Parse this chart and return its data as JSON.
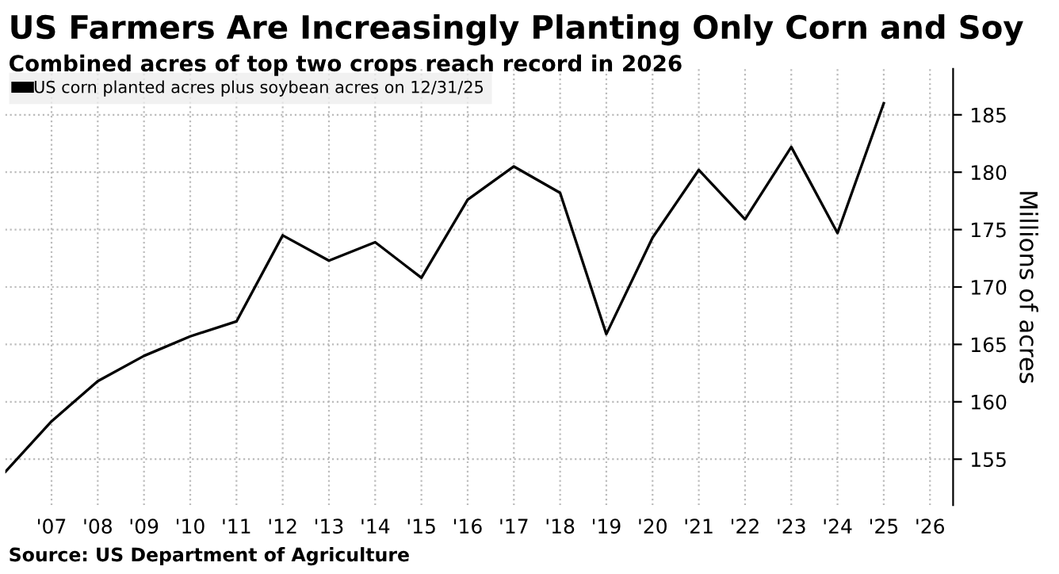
{
  "chart_data": {
    "type": "line",
    "title": "US Farmers Are Increasingly Planting Only Corn and Soy",
    "subtitle": "Combined acres of top two crops reach record in 2026",
    "ylabel": "Millions of acres",
    "annotations": [
      "Source: US Department of Agriculture"
    ],
    "x": [
      2006,
      2007,
      2008,
      2009,
      2010,
      2011,
      2012,
      2013,
      2014,
      2015,
      2016,
      2017,
      2018,
      2019,
      2020,
      2021,
      2022,
      2023,
      2024,
      2025
    ],
    "series": [
      {
        "name": "US corn planted acres plus soybean acres on 12/31/25",
        "color": "#000000",
        "values": [
          153.9,
          158.3,
          161.8,
          164.0,
          165.7,
          167.0,
          174.5,
          172.3,
          173.9,
          170.8,
          177.6,
          180.5,
          178.2,
          165.9,
          174.3,
          180.2,
          175.9,
          182.2,
          174.7,
          186.0
        ]
      }
    ],
    "xlim": [
      2006,
      2026.5
    ],
    "ylim": [
      151,
      189
    ],
    "xticks": [
      {
        "value": 2007,
        "label": "'07"
      },
      {
        "value": 2008,
        "label": "'08"
      },
      {
        "value": 2009,
        "label": "'09"
      },
      {
        "value": 2010,
        "label": "'10"
      },
      {
        "value": 2011,
        "label": "'11"
      },
      {
        "value": 2012,
        "label": "'12"
      },
      {
        "value": 2013,
        "label": "'13"
      },
      {
        "value": 2014,
        "label": "'14"
      },
      {
        "value": 2015,
        "label": "'15"
      },
      {
        "value": 2016,
        "label": "'16"
      },
      {
        "value": 2017,
        "label": "'17"
      },
      {
        "value": 2018,
        "label": "'18"
      },
      {
        "value": 2019,
        "label": "'19"
      },
      {
        "value": 2020,
        "label": "'20"
      },
      {
        "value": 2021,
        "label": "'21"
      },
      {
        "value": 2022,
        "label": "'22"
      },
      {
        "value": 2023,
        "label": "'23"
      },
      {
        "value": 2024,
        "label": "'24"
      },
      {
        "value": 2025,
        "label": "'25"
      },
      {
        "value": 2026,
        "label": "'26"
      }
    ],
    "yticks": [
      155,
      160,
      165,
      170,
      175,
      180,
      185
    ],
    "grid": true,
    "legend": "top left",
    "marker": "none",
    "line_style": "solid"
  }
}
